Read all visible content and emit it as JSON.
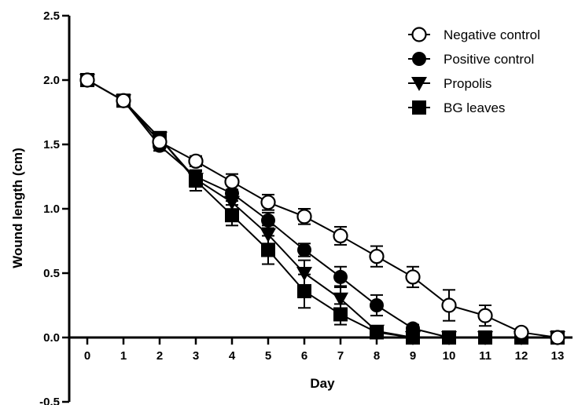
{
  "chart_data": {
    "type": "line",
    "xlabel": "Day",
    "ylabel": "Wound length (cm)",
    "x": [
      0,
      1,
      2,
      3,
      4,
      5,
      6,
      7,
      8,
      9,
      10,
      11,
      12,
      13
    ],
    "xlim": [
      -0.5,
      13.5
    ],
    "ylim": [
      -0.5,
      2.5
    ],
    "xticks": [
      0,
      1,
      2,
      3,
      4,
      5,
      6,
      7,
      8,
      9,
      10,
      11,
      12,
      13
    ],
    "yticks": [
      -0.5,
      0.0,
      0.5,
      1.0,
      1.5,
      2.0,
      2.5
    ],
    "ytick_labels": [
      "-0.5",
      "0.0",
      "0.5",
      "1.0",
      "1.5",
      "2.0",
      "2.5"
    ],
    "legend_position": "top-right",
    "grid": false,
    "series": [
      {
        "name": "Negative control",
        "marker": "open-circle",
        "values": [
          2.0,
          1.84,
          1.52,
          1.37,
          1.21,
          1.05,
          0.94,
          0.79,
          0.63,
          0.47,
          0.25,
          0.17,
          0.04,
          0.0
        ],
        "error": [
          0.03,
          0.03,
          0.04,
          0.04,
          0.06,
          0.06,
          0.06,
          0.07,
          0.08,
          0.08,
          0.12,
          0.08,
          0.02,
          0.0
        ]
      },
      {
        "name": "Positive control",
        "marker": "filled-circle",
        "values": [
          2.0,
          1.84,
          1.49,
          1.25,
          1.12,
          0.91,
          0.68,
          0.47,
          0.25,
          0.07,
          0.0,
          0.0,
          0.0,
          0.0
        ],
        "error": [
          0.03,
          0.03,
          0.04,
          0.05,
          0.06,
          0.06,
          0.05,
          0.08,
          0.08,
          0.03,
          0.0,
          0.0,
          0.0,
          0.0
        ]
      },
      {
        "name": "Propolis",
        "marker": "filled-triangle-down",
        "values": [
          2.0,
          1.84,
          1.55,
          1.23,
          1.05,
          0.8,
          0.5,
          0.3,
          0.05,
          0.0,
          0.0,
          0.0,
          0.0,
          0.0
        ],
        "error": [
          0.03,
          0.03,
          0.04,
          0.06,
          0.07,
          0.07,
          0.1,
          0.1,
          0.04,
          0.0,
          0.0,
          0.0,
          0.0,
          0.0
        ]
      },
      {
        "name": "BG leaves",
        "marker": "filled-square",
        "values": [
          2.0,
          1.84,
          1.55,
          1.22,
          0.95,
          0.68,
          0.36,
          0.18,
          0.04,
          0.0,
          0.0,
          0.0,
          0.0,
          0.0
        ],
        "error": [
          0.03,
          0.03,
          0.04,
          0.08,
          0.08,
          0.11,
          0.13,
          0.08,
          0.03,
          0.0,
          0.0,
          0.0,
          0.0,
          0.0
        ]
      }
    ]
  }
}
